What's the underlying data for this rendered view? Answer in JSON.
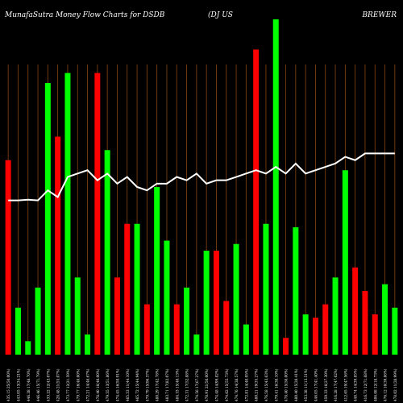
{
  "header": {
    "title": "MunafaSutra  Money Flow  Charts for DSDB",
    "tag": "(DJ US",
    "sector": "BREWER"
  },
  "chart_data": {
    "type": "bar",
    "title": "MunafaSutra  Money Flow  Charts for DSDB",
    "xlabel": "",
    "ylabel": "",
    "ylim": [
      0,
      100
    ],
    "grid": true,
    "series_colors": {
      "up": "#00ff00",
      "down": "#ff0000",
      "line": "#ffffff",
      "grid": "#8b4513"
    },
    "categories": [
      "435.15 25(50.00%)",
      "443.05 13(34.21%)",
      "446.38 17(48.70%)",
      "446.46 15(71.79%)",
      "433.22 12(43.07%)",
      "428.48 21(55.07%)",
      "473.77 12(21.59%)",
      "479.77 16(40.00%)",
      "472.21 14(46.67%)",
      "478.40 16(40.00%)",
      "479.55 13(51.86%)",
      "474.45 16(50.91%)",
      "465.53 11(44.10%)",
      "465.72 15(44.94%)",
      "479.79 15(96.37%)",
      "480.29 17(42.78%)",
      "483.71 17(82.07%)",
      "484.33 15(40.13%)",
      "472.31 17(52.88%)",
      "474.56 17(67.27%)",
      "478.91 21(50.00%)",
      "474.48 14(99.82%)",
      "474.62 15(55.73%)",
      "474.76 14(38.57%)",
      "472.81 14(40.95%)",
      "480.21 19(35.27%)",
      "476.58 15(43.63%)",
      "479.41 16(38.10%)",
      "478.40 15(50.00%)",
      "480.40 15(28.41%)",
      "453.38 11(13.51%)",
      "446.05 17(41.40%)",
      "459.33 16(27.30%)",
      "416.28 17(47.62%)",
      "412.65 19(47.56%)",
      "448.74 14(39.85%)",
      "416.73 12(71.68%)",
      "406.08 12(18.73%)",
      "476.12 10(39.86%)",
      "478.02 11(28.99%)"
    ],
    "series": [
      {
        "name": "",
        "direction": [
          "down",
          "up",
          "up",
          "up",
          "up",
          "down",
          "up",
          "up",
          "up",
          "down",
          "up",
          "down",
          "down",
          "up",
          "down",
          "up",
          "up",
          "down",
          "up",
          "up",
          "up",
          "down",
          "down",
          "up",
          "up",
          "down",
          "up",
          "up",
          "down",
          "up",
          "up",
          "down",
          "down",
          "up",
          "up",
          "down",
          "down",
          "down",
          "up",
          "up"
        ],
        "values": [
          58,
          14,
          4,
          20,
          81,
          65,
          84,
          23,
          6,
          84,
          61,
          23,
          39,
          39,
          15,
          50,
          34,
          15,
          20,
          6,
          31,
          31,
          16,
          33,
          9,
          91,
          39,
          100,
          5,
          38,
          12,
          11,
          15,
          23,
          55,
          26,
          19,
          12,
          21,
          14
        ]
      },
      {
        "name": "",
        "type": "line",
        "values": [
          46,
          46,
          46.2,
          46,
          49,
          47,
          53,
          54,
          55,
          52,
          54,
          51,
          53,
          50,
          49,
          51,
          51,
          53,
          52,
          54,
          51,
          52,
          52,
          53,
          54,
          55,
          54,
          56,
          54,
          57,
          54,
          55,
          56,
          57,
          59,
          58,
          60,
          60,
          60,
          60
        ]
      }
    ]
  }
}
